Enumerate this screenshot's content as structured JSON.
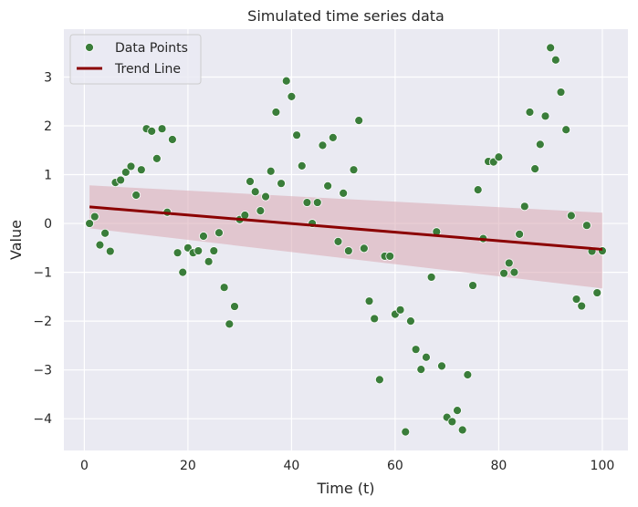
{
  "chart_data": {
    "type": "scatter",
    "title": "Simulated time series data",
    "xlabel": "Time (t)",
    "ylabel": "Value",
    "xlim": [
      -3.95,
      104.95
    ],
    "ylim": [
      -4.65,
      3.98
    ],
    "xticks": [
      0,
      20,
      40,
      60,
      80,
      100
    ],
    "yticks": [
      -4,
      -3,
      -2,
      -1,
      0,
      1,
      2,
      3
    ],
    "grid": true,
    "legend_position": "top-left",
    "colors": {
      "plot_background": "#eaeaf2",
      "grid": "#ffffff",
      "points": "#3a7d3a",
      "trend_line": "#8b0000",
      "confidence_band": "#d9a7b3"
    },
    "series": [
      {
        "name": "Data Points",
        "kind": "scatter",
        "x": [
          1,
          2,
          3,
          4,
          5,
          6,
          7,
          8,
          9,
          10,
          11,
          12,
          13,
          14,
          15,
          16,
          17,
          18,
          19,
          20,
          21,
          22,
          23,
          24,
          25,
          26,
          27,
          28,
          29,
          30,
          31,
          32,
          33,
          34,
          35,
          36,
          37,
          38,
          39,
          40,
          41,
          42,
          43,
          44,
          45,
          46,
          47,
          48,
          49,
          50,
          51,
          52,
          53,
          54,
          55,
          56,
          57,
          58,
          59,
          60,
          61,
          62,
          63,
          64,
          65,
          66,
          67,
          68,
          69,
          70,
          71,
          72,
          73,
          74,
          75,
          76,
          77,
          78,
          79,
          80,
          81,
          82,
          83,
          84,
          85,
          86,
          87,
          88,
          89,
          90,
          91,
          92,
          93,
          94,
          95,
          96,
          97,
          98,
          99,
          100
        ],
        "y": [
          0.0,
          0.14,
          -0.44,
          -0.2,
          -0.57,
          0.84,
          0.89,
          1.05,
          1.17,
          0.58,
          1.1,
          1.94,
          1.89,
          1.33,
          1.94,
          0.23,
          1.72,
          -0.6,
          -1.0,
          -0.5,
          -0.6,
          -0.56,
          -0.26,
          -0.78,
          -0.56,
          -0.19,
          -1.31,
          -2.06,
          -1.7,
          0.08,
          0.17,
          0.86,
          0.65,
          0.26,
          0.55,
          1.07,
          2.28,
          0.82,
          2.92,
          2.6,
          1.81,
          1.18,
          0.43,
          0.0,
          0.43,
          1.6,
          0.77,
          1.76,
          -0.37,
          0.62,
          -0.56,
          1.1,
          2.11,
          -0.51,
          -1.59,
          -1.95,
          -3.2,
          -0.67,
          -0.67,
          -1.86,
          -1.77,
          -4.27,
          -2.0,
          -2.58,
          -2.99,
          -2.74,
          -1.1,
          -0.17,
          -2.92,
          -3.97,
          -4.06,
          -3.83,
          -4.23,
          -3.1,
          -1.27,
          0.69,
          -0.31,
          1.27,
          1.26,
          1.36,
          -1.02,
          -0.81,
          -1.0,
          -0.22,
          0.35,
          2.28,
          1.12,
          1.62,
          2.2,
          3.6,
          3.35,
          2.69,
          1.92,
          0.16,
          -1.55,
          -1.69,
          -0.04,
          -0.57,
          -1.42,
          -0.56
        ]
      },
      {
        "name": "Trend Line",
        "kind": "line",
        "x": [
          1,
          100
        ],
        "y": [
          0.34,
          -0.53
        ],
        "ci_lower": [
          -0.1,
          -1.33
        ],
        "ci_upper": [
          0.78,
          0.22
        ]
      }
    ]
  }
}
